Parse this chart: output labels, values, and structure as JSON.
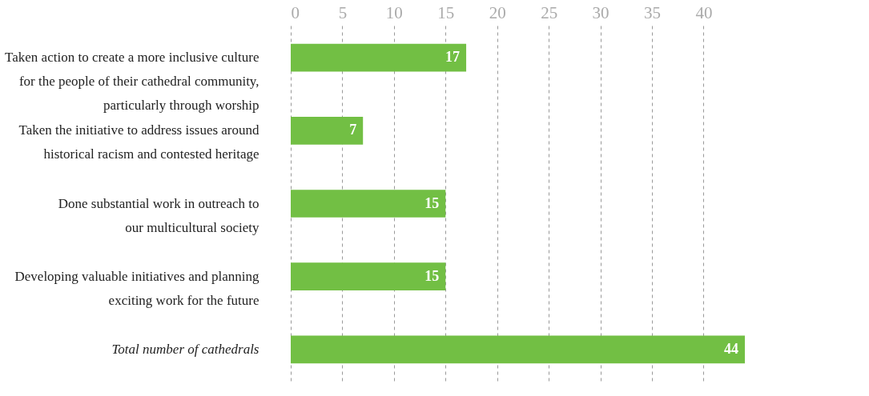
{
  "chart_data": {
    "type": "bar",
    "orientation": "horizontal",
    "categories": [
      "Taken action to create a more inclusive culture\nfor the  people of their cathedral community,\nparticularly through worship",
      "Taken the initiative to address issues around\nhistorical racism and contested heritage",
      "Done substantial work in outreach to\nour multicultural society",
      "Developing valuable initiatives and planning\nexciting work for the future",
      "Total number of cathedrals"
    ],
    "values": [
      17,
      7,
      15,
      15,
      44
    ],
    "color": "#72bf44",
    "xlim": [
      0,
      44
    ],
    "xticks": [
      0,
      5,
      10,
      15,
      20,
      25,
      30,
      35,
      40
    ],
    "grid": "x",
    "data_labels": true
  }
}
